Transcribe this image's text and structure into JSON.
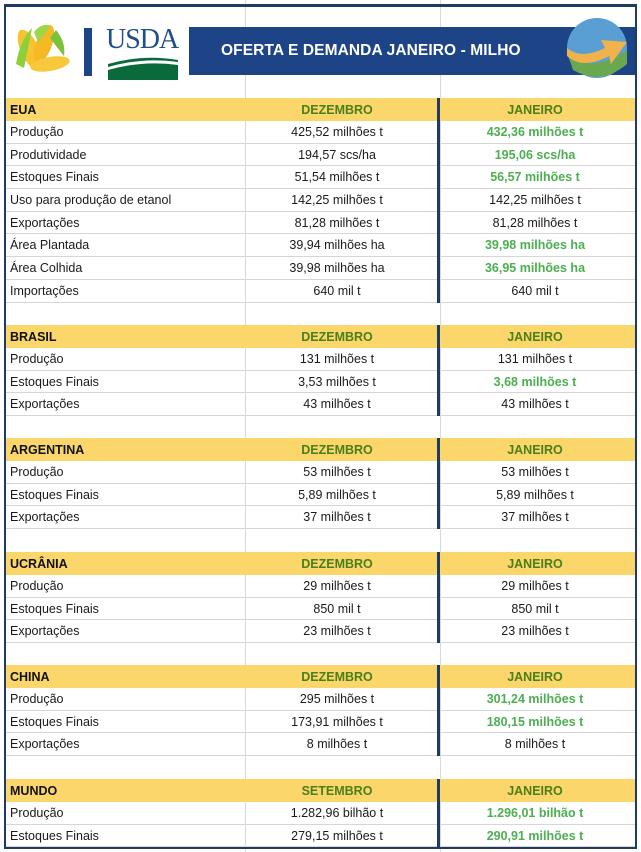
{
  "header": {
    "title": "OFERTA E DEMANDA JANEIRO - MILHO",
    "logos": [
      "corn-icon",
      "usda-logo",
      "globe-arrow-icon"
    ],
    "usda_text": "USDA"
  },
  "colors": {
    "banner": "#1e4488",
    "frame": "#1f3b63",
    "section_header_bg": "#fbd66a",
    "month_header_text": "#4a7f1c",
    "changed_value": "#4caf50"
  },
  "sections": [
    {
      "name": "EUA",
      "col1": "DEZEMBRO",
      "col2": "JANEIRO",
      "rows": [
        {
          "label": "Produção",
          "prev": "425,52 milhões t",
          "curr": "432,36 milhões t",
          "changed": true
        },
        {
          "label": "Produtividade",
          "prev": "194,57 scs/ha",
          "curr": "195,06 scs/ha",
          "changed": true
        },
        {
          "label": "Estoques Finais",
          "prev": "51,54 milhões t",
          "curr": "56,57 milhões t",
          "changed": true
        },
        {
          "label": "Uso para produção de etanol",
          "prev": "142,25  milhões t",
          "curr": "142,25 milhões t",
          "changed": false
        },
        {
          "label": "Exportações",
          "prev": "81,28 milhões t",
          "curr": "81,28 milhões t",
          "changed": false
        },
        {
          "label": "Área Plantada",
          "prev": "39,94 milhões ha",
          "curr": "39,98 milhões ha",
          "changed": true
        },
        {
          "label": "Área Colhida",
          "prev": "39,98 milhões ha",
          "curr": "36,95 milhões ha",
          "changed": true
        },
        {
          "label": "Importações",
          "prev": "640 mil t",
          "curr": "640 mil t",
          "changed": false
        }
      ]
    },
    {
      "name": "BRASIL",
      "col1": "DEZEMBRO",
      "col2": "JANEIRO",
      "rows": [
        {
          "label": "Produção",
          "prev": "131 milhões t",
          "curr": "131 milhões t",
          "changed": false
        },
        {
          "label": "Estoques Finais",
          "prev": "3,53 milhões t",
          "curr": "3,68 milhões t",
          "changed": true
        },
        {
          "label": "Exportações",
          "prev": "43 milhões t",
          "curr": "43 milhões t",
          "changed": false
        }
      ]
    },
    {
      "name": "ARGENTINA",
      "col1": "DEZEMBRO",
      "col2": "JANEIRO",
      "rows": [
        {
          "label": "Produção",
          "prev": "53 milhões t",
          "curr": "53 milhões t",
          "changed": false
        },
        {
          "label": "Estoques Finais",
          "prev": "5,89 milhões t",
          "curr": "5,89 milhões t",
          "changed": false
        },
        {
          "label": "Exportações",
          "prev": "37 milhões t",
          "curr": "37 milhões t",
          "changed": false
        }
      ]
    },
    {
      "name": "UCRÂNIA",
      "col1": "DEZEMBRO",
      "col2": "JANEIRO",
      "rows": [
        {
          "label": "Produção",
          "prev": "29 milhões t",
          "curr": "29 milhões t",
          "changed": false
        },
        {
          "label": "Estoques Finais",
          "prev": "850 mil t",
          "curr": "850 mil t",
          "changed": false
        },
        {
          "label": "Exportações",
          "prev": "23 milhões t",
          "curr": "23 milhões t",
          "changed": false
        }
      ]
    },
    {
      "name": "CHINA",
      "col1": "DEZEMBRO",
      "col2": "JANEIRO",
      "rows": [
        {
          "label": "Produção",
          "prev": "295 milhões t",
          "curr": "301,24 milhões t",
          "changed": true
        },
        {
          "label": "Estoques Finais",
          "prev": "173,91 milhões t",
          "curr": "180,15 milhões t",
          "changed": true
        },
        {
          "label": "Exportações",
          "prev": "8 milhões t",
          "curr": "8 milhões t",
          "changed": false
        }
      ]
    },
    {
      "name": "MUNDO",
      "col1": "SETEMBRO",
      "col2": "JANEIRO",
      "rows": [
        {
          "label": "Produção",
          "prev": "1.282,96 bilhão t",
          "curr": "1.296,01 bilhão t",
          "changed": true
        },
        {
          "label": "Estoques Finais",
          "prev": "279,15 milhões t",
          "curr": "290,91 milhões t",
          "changed": true
        }
      ]
    }
  ]
}
